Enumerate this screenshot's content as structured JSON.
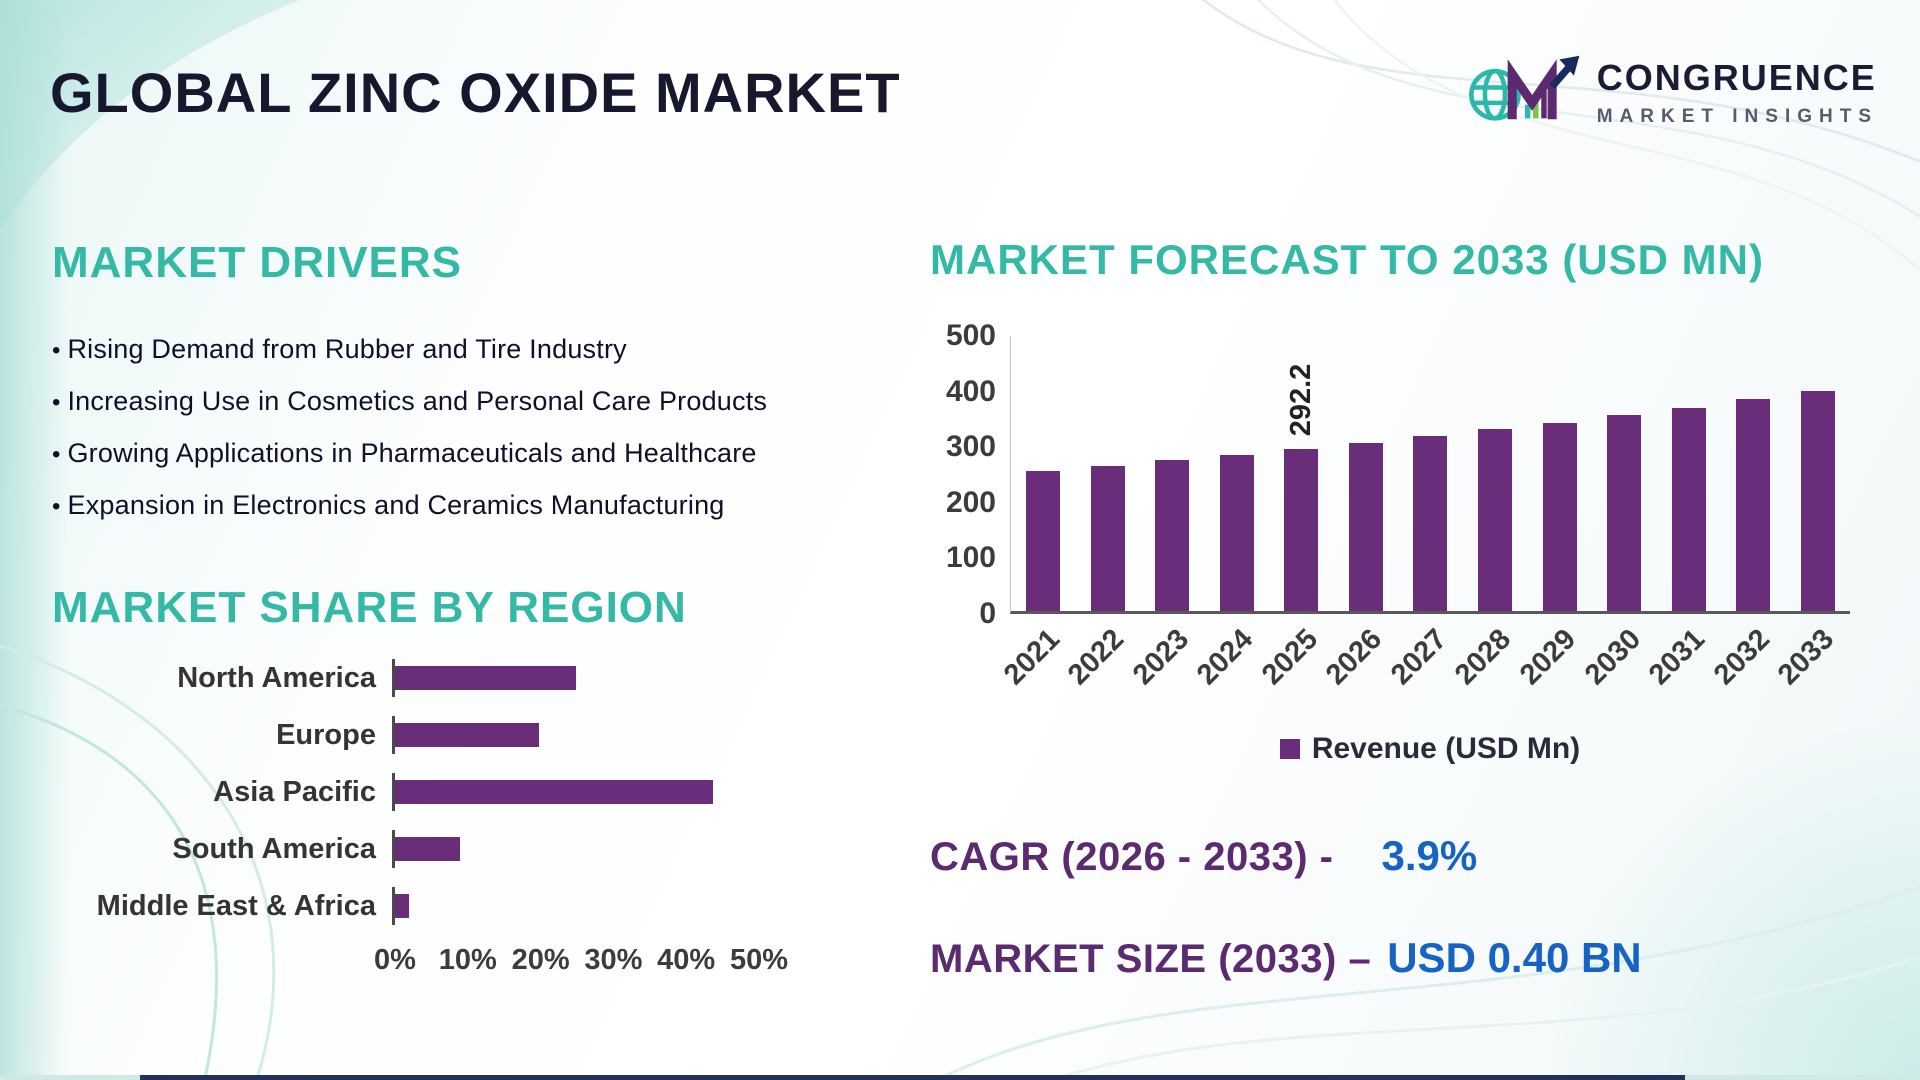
{
  "page": {
    "title": "GLOBAL ZINC OXIDE MARKET"
  },
  "logo": {
    "brand_line1": "CONGRUENCE",
    "brand_line2": "MARKET INSIGHTS"
  },
  "market_drivers": {
    "heading": "MARKET DRIVERS",
    "items": [
      "Rising Demand from Rubber and Tire Industry",
      "Increasing Use in Cosmetics and Personal Care Products",
      "Growing Applications in Pharmaceuticals and Healthcare",
      "Expansion in Electronics and Ceramics Manufacturing"
    ]
  },
  "chart_data": [
    {
      "type": "bar",
      "orientation": "horizontal",
      "title": "MARKET SHARE BY REGION",
      "categories": [
        "North America",
        "Europe",
        "Asia Pacific",
        "South America",
        "Middle East & Africa"
      ],
      "values": [
        25,
        20,
        44,
        9,
        2
      ],
      "unit": "%",
      "xlim": [
        0,
        50
      ],
      "x_ticks": [
        "0%",
        "10%",
        "20%",
        "30%",
        "40%",
        "50%"
      ],
      "bar_color": "#6a2d7a",
      "grid": false
    },
    {
      "type": "bar",
      "orientation": "vertical",
      "title": "MARKET FORECAST TO 2033 (USD MN)",
      "categories": [
        "2021",
        "2022",
        "2023",
        "2024",
        "2025",
        "2026",
        "2027",
        "2028",
        "2029",
        "2030",
        "2031",
        "2032",
        "2033"
      ],
      "values": [
        252,
        261,
        271,
        281,
        292.2,
        303,
        315,
        327,
        339,
        352,
        365,
        381,
        396
      ],
      "data_label": {
        "index": 4,
        "text": "292.2"
      },
      "ylim": [
        0,
        500
      ],
      "y_ticks": [
        0,
        100,
        200,
        300,
        400,
        500
      ],
      "legend": "Revenue (USD Mn)",
      "legend_position": "bottom",
      "bar_color": "#6a2d7a",
      "grid": false
    }
  ],
  "stats": {
    "cagr_label": "CAGR (2026 - 2033) -",
    "cagr_value": "3.9%",
    "market_size_label": "MARKET SIZE (2033) –",
    "market_size_value": "USD 0.40 BN"
  },
  "colors": {
    "teal_accent": "#34b9a6",
    "purple": "#6a2d7a",
    "deep_purple_text": "#5c2a70",
    "blue_value": "#1662c5",
    "navy_title": "#17172e"
  }
}
